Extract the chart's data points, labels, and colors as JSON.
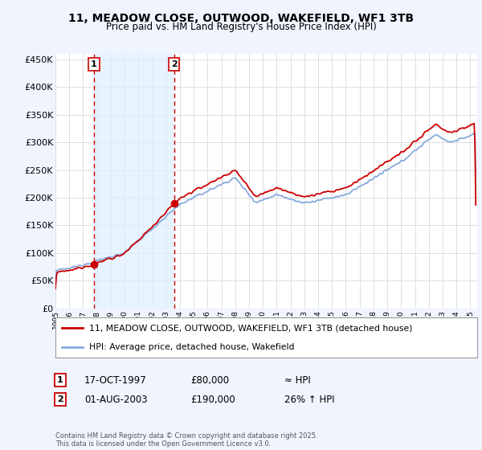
{
  "title": "11, MEADOW CLOSE, OUTWOOD, WAKEFIELD, WF1 3TB",
  "subtitle": "Price paid vs. HM Land Registry's House Price Index (HPI)",
  "ylabel_ticks": [
    "£0",
    "£50K",
    "£100K",
    "£150K",
    "£200K",
    "£250K",
    "£300K",
    "£350K",
    "£400K",
    "£450K"
  ],
  "ytick_vals": [
    0,
    50000,
    100000,
    150000,
    200000,
    250000,
    300000,
    350000,
    400000,
    450000
  ],
  "ylim": [
    0,
    460000
  ],
  "xlim_start": 1995.0,
  "xlim_end": 2025.5,
  "sale1_x": 1997.79,
  "sale1_y": 80000,
  "sale2_x": 2003.58,
  "sale2_y": 190000,
  "sale1_label": "1",
  "sale2_label": "2",
  "legend_line1": "11, MEADOW CLOSE, OUTWOOD, WAKEFIELD, WF1 3TB (detached house)",
  "legend_line2": "HPI: Average price, detached house, Wakefield",
  "table_row1": [
    "1",
    "17-OCT-1997",
    "£80,000",
    "≈ HPI"
  ],
  "table_row2": [
    "2",
    "01-AUG-2003",
    "£190,000",
    "26% ↑ HPI"
  ],
  "footnote": "Contains HM Land Registry data © Crown copyright and database right 2025.\nThis data is licensed under the Open Government Licence v3.0.",
  "line_color_red": "#cc0000",
  "line_color_blue": "#88aadd",
  "shade_color": "#ddeeff",
  "background_color": "#f0f4ff",
  "plot_bg_color": "#ffffff",
  "grid_color": "#dddddd"
}
